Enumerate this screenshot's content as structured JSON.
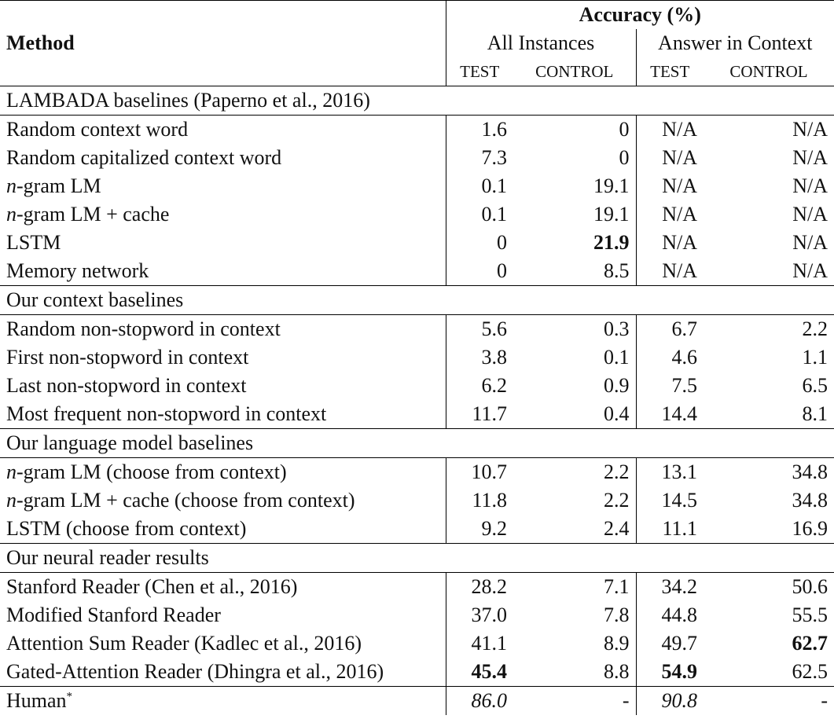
{
  "header": {
    "method": "Method",
    "accuracy": "Accuracy (%)",
    "all_instances": "All Instances",
    "answer_in_context": "Answer in Context",
    "test": "TEST",
    "control": "CONTROL"
  },
  "sections": [
    {
      "title": "LAMBADA baselines (Paperno et al., 2016)",
      "rows": [
        {
          "pre": "",
          "mv": "",
          "rest": "Random context word",
          "v": [
            "1.6",
            "0",
            "N/A",
            "N/A"
          ]
        },
        {
          "pre": "",
          "mv": "",
          "rest": "Random capitalized context word",
          "v": [
            "7.3",
            "0",
            "N/A",
            "N/A"
          ]
        },
        {
          "pre": "",
          "mv": "n",
          "rest": "-gram LM",
          "v": [
            "0.1",
            "19.1",
            "N/A",
            "N/A"
          ]
        },
        {
          "pre": "",
          "mv": "n",
          "rest": "-gram LM + cache",
          "v": [
            "0.1",
            "19.1",
            "N/A",
            "N/A"
          ]
        },
        {
          "pre": "",
          "mv": "",
          "rest": "LSTM",
          "v": [
            "0",
            "21.9",
            "N/A",
            "N/A"
          ]
        },
        {
          "pre": "",
          "mv": "",
          "rest": "Memory network",
          "v": [
            "0",
            "8.5",
            "N/A",
            "N/A"
          ]
        }
      ]
    },
    {
      "title": "Our context baselines",
      "rows": [
        {
          "pre": "",
          "mv": "",
          "rest": "Random non-stopword in context",
          "v": [
            "5.6",
            "0.3",
            "6.7",
            "2.2"
          ]
        },
        {
          "pre": "",
          "mv": "",
          "rest": "First non-stopword in context",
          "v": [
            "3.8",
            "0.1",
            "4.6",
            "1.1"
          ]
        },
        {
          "pre": "",
          "mv": "",
          "rest": "Last non-stopword in context",
          "v": [
            "6.2",
            "0.9",
            "7.5",
            "6.5"
          ]
        },
        {
          "pre": "",
          "mv": "",
          "rest": "Most frequent non-stopword in context",
          "v": [
            "11.7",
            "0.4",
            "14.4",
            "8.1"
          ]
        }
      ]
    },
    {
      "title": "Our language model baselines",
      "rows": [
        {
          "pre": "",
          "mv": "n",
          "rest": "-gram LM (choose from context)",
          "v": [
            "10.7",
            "2.2",
            "13.1",
            "34.8"
          ]
        },
        {
          "pre": "",
          "mv": "n",
          "rest": "-gram LM + cache (choose from context)",
          "v": [
            "11.8",
            "2.2",
            "14.5",
            "34.8"
          ]
        },
        {
          "pre": "",
          "mv": "",
          "rest": "LSTM (choose from context)",
          "v": [
            "9.2",
            "2.4",
            "11.1",
            "16.9"
          ]
        }
      ]
    },
    {
      "title": "Our neural reader results",
      "rows": [
        {
          "pre": "",
          "mv": "",
          "rest": "Stanford Reader (Chen et al., 2016)",
          "v": [
            "28.2",
            "7.1",
            "34.2",
            "50.6"
          ]
        },
        {
          "pre": "",
          "mv": "",
          "rest": "Modified Stanford Reader",
          "v": [
            "37.0",
            "7.8",
            "44.8",
            "55.5"
          ]
        },
        {
          "pre": "",
          "mv": "",
          "rest": "Attention Sum Reader (Kadlec et al., 2016)",
          "v": [
            "41.1",
            "8.9",
            "49.7",
            "62.7"
          ]
        },
        {
          "pre": "",
          "mv": "",
          "rest": "Gated-Attention Reader (Dhingra et al., 2016)",
          "v": [
            "45.4",
            "8.8",
            "54.9",
            "62.5"
          ]
        }
      ]
    }
  ],
  "human": {
    "label": "Human",
    "mark": "*",
    "v": [
      "86.0",
      "-",
      "90.8",
      "-"
    ]
  }
}
